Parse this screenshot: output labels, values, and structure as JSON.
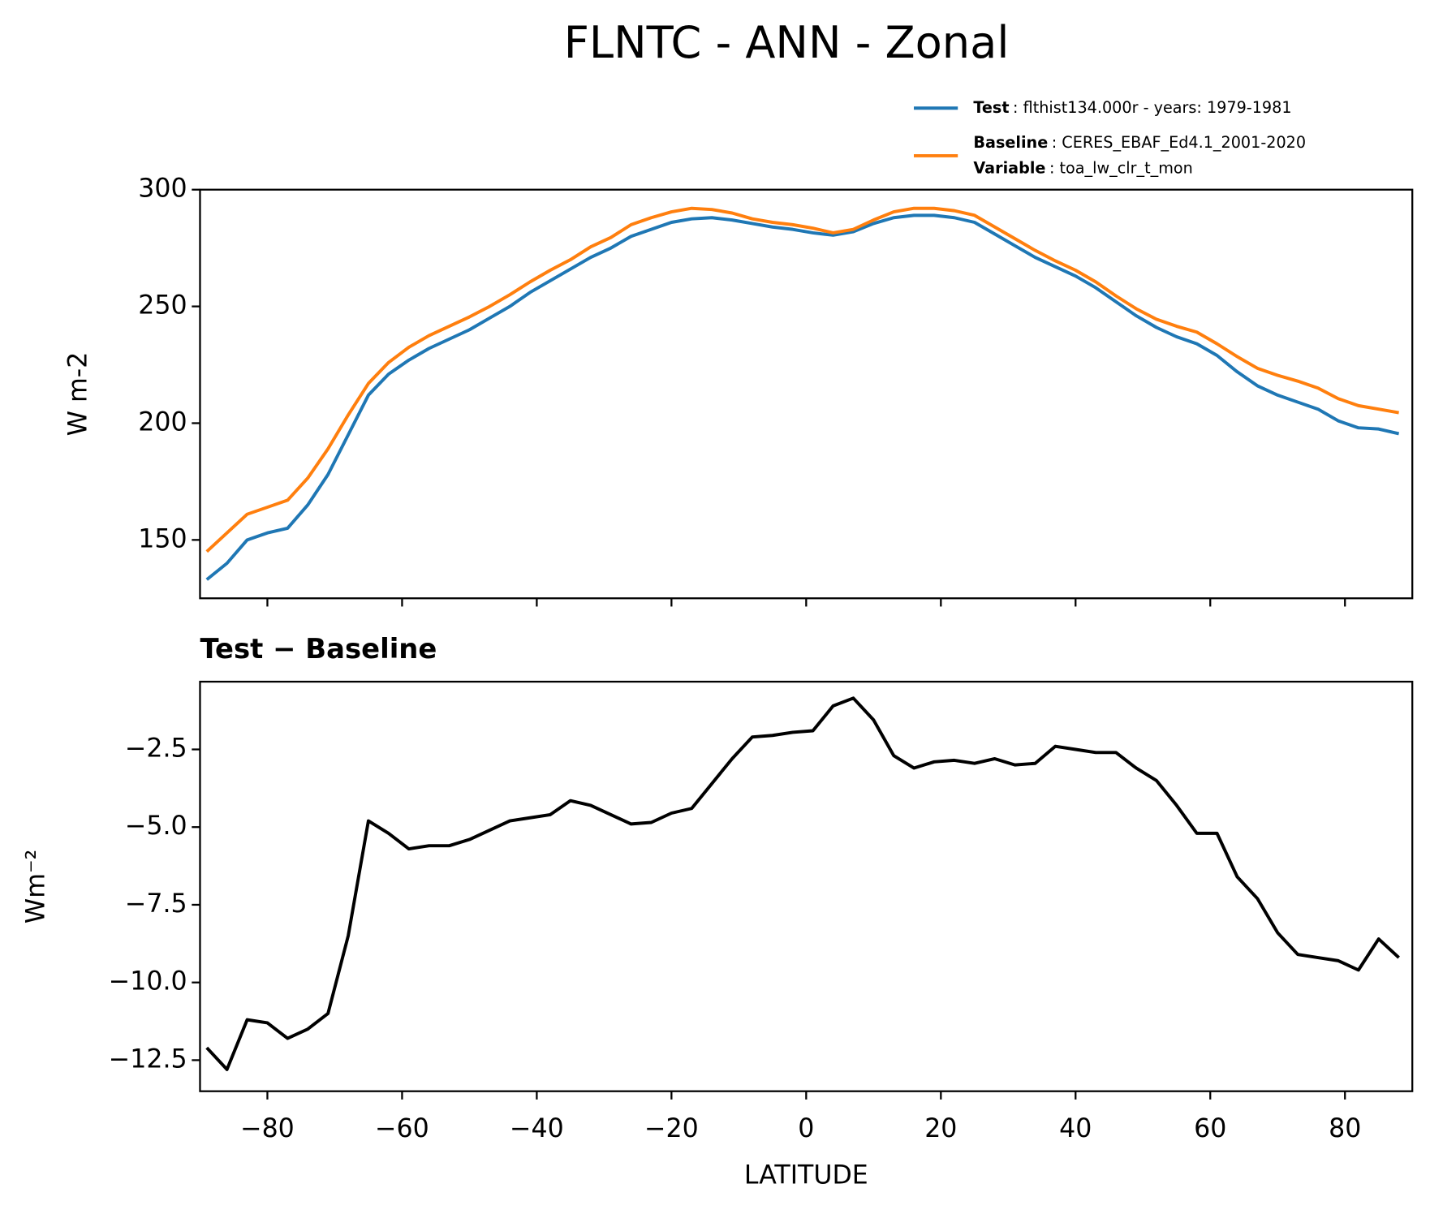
{
  "title": "FLNTC - ANN - Zonal",
  "chart_data": [
    {
      "type": "line",
      "ylabel": "W m-2",
      "xlim": [
        -90,
        90
      ],
      "ylim": [
        125,
        300
      ],
      "xticks": [
        -80,
        -60,
        -40,
        -20,
        0,
        20,
        40,
        60,
        80
      ],
      "show_xtick_labels": false,
      "yticks": [
        150,
        200,
        250,
        300
      ],
      "x": [
        -89,
        -86,
        -83,
        -80,
        -77,
        -74,
        -71,
        -68,
        -65,
        -62,
        -59,
        -56,
        -53,
        -50,
        -47,
        -44,
        -41,
        -38,
        -35,
        -32,
        -29,
        -26,
        -23,
        -20,
        -17,
        -14,
        -11,
        -8,
        -5,
        -2,
        1,
        4,
        7,
        10,
        13,
        16,
        19,
        22,
        25,
        28,
        31,
        34,
        37,
        40,
        43,
        46,
        49,
        52,
        55,
        58,
        61,
        64,
        67,
        70,
        73,
        76,
        79,
        82,
        85,
        88
      ],
      "series": [
        {
          "name": "Test",
          "detail": ": flthist134.000r - years: 1979-1981",
          "color": "#1f77b4",
          "values": [
            133,
            140,
            150,
            153,
            155,
            165,
            178,
            195,
            212,
            221,
            227,
            232,
            236,
            240,
            245,
            250,
            256,
            261,
            266,
            271,
            275,
            280,
            283,
            286,
            287.5,
            288,
            287,
            285.5,
            284,
            283,
            281.5,
            280.5,
            282,
            285.5,
            288,
            289,
            289,
            288,
            286,
            281,
            276,
            271,
            267,
            263,
            258,
            252,
            246,
            241,
            237,
            234,
            229,
            222,
            216,
            212,
            209,
            206,
            201,
            198,
            197.5,
            195.5
          ]
        },
        {
          "name": "Baseline",
          "detail": ": CERES_EBAF_Ed4.1_2001-2020",
          "color": "#ff7f0e",
          "values": [
            145,
            153,
            161,
            164,
            167,
            176.5,
            189,
            203.5,
            217,
            226,
            232.5,
            237.5,
            241.5,
            245.5,
            250,
            255,
            260.5,
            265.5,
            270,
            275.5,
            279.5,
            285,
            288,
            290.5,
            292,
            291.5,
            290,
            287.5,
            286,
            285,
            283.5,
            281.5,
            283,
            287,
            290.5,
            292,
            292,
            291,
            289,
            284,
            279,
            274,
            269.5,
            265.5,
            260.5,
            254.5,
            249,
            244.5,
            241.5,
            239,
            234,
            228.5,
            223.5,
            220.5,
            218,
            215,
            210.5,
            207.5,
            206,
            204.5
          ]
        }
      ],
      "legend_note": {
        "label": "Variable",
        "text": ": toa_lw_clr_t_mon"
      }
    },
    {
      "type": "line",
      "title": "Test − Baseline",
      "ylabel": "Wm⁻²",
      "xlabel": "LATITUDE",
      "xlim": [
        -90,
        90
      ],
      "ylim": [
        -13.5,
        -0.32
      ],
      "xticks": [
        {
          "value": -80,
          "label": "−80"
        },
        {
          "value": -60,
          "label": "−60"
        },
        {
          "value": -40,
          "label": "−40"
        },
        {
          "value": -20,
          "label": "−20"
        },
        0,
        20,
        40,
        60,
        80
      ],
      "show_xtick_labels": true,
      "yticks": [
        {
          "value": -12.5,
          "label": "−12.5"
        },
        {
          "value": -10,
          "label": "−10.0"
        },
        {
          "value": -7.5,
          "label": "−7.5"
        },
        {
          "value": -5,
          "label": "−5.0"
        },
        {
          "value": -2.5,
          "label": "−2.5"
        }
      ],
      "x": [
        -89,
        -86,
        -83,
        -80,
        -77,
        -74,
        -71,
        -68,
        -65,
        -62,
        -59,
        -56,
        -53,
        -50,
        -47,
        -44,
        -41,
        -38,
        -35,
        -32,
        -29,
        -26,
        -23,
        -20,
        -17,
        -14,
        -11,
        -8,
        -5,
        -2,
        1,
        4,
        7,
        10,
        13,
        16,
        19,
        22,
        25,
        28,
        31,
        34,
        37,
        40,
        43,
        46,
        49,
        52,
        55,
        58,
        61,
        64,
        67,
        70,
        73,
        76,
        79,
        82,
        85,
        88
      ],
      "series": [
        {
          "color": "#000000",
          "values": [
            -12.1,
            -12.8,
            -11.2,
            -11.3,
            -11.8,
            -11.5,
            -11.0,
            -8.5,
            -4.8,
            -5.2,
            -5.7,
            -5.6,
            -5.6,
            -5.4,
            -5.1,
            -4.8,
            -4.7,
            -4.6,
            -4.15,
            -4.3,
            -4.6,
            -4.9,
            -4.85,
            -4.55,
            -4.4,
            -3.6,
            -2.8,
            -2.1,
            -2.05,
            -1.95,
            -1.9,
            -1.1,
            -0.85,
            -1.55,
            -2.7,
            -3.1,
            -2.9,
            -2.85,
            -2.95,
            -2.8,
            -3.0,
            -2.95,
            -2.4,
            -2.5,
            -2.6,
            -2.6,
            -3.1,
            -3.5,
            -4.3,
            -5.2,
            -5.2,
            -6.6,
            -7.3,
            -8.4,
            -9.1,
            -9.2,
            -9.3,
            -9.6,
            -8.6,
            -9.2
          ]
        }
      ]
    }
  ]
}
